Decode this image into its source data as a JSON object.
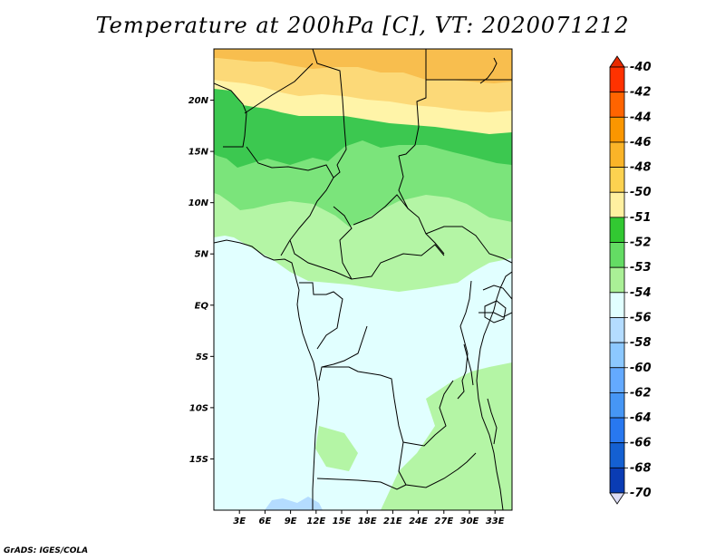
{
  "title": "Temperature at 200hPa [C], VT: 2020071212",
  "credit": "GrADS: IGES/COLA",
  "map": {
    "lat_labels": [
      "20N",
      "15N",
      "10N",
      "5N",
      "EQ",
      "5S",
      "10S",
      "15S"
    ],
    "lon_labels": [
      "3E",
      "6E",
      "9E",
      "12E",
      "15E",
      "18E",
      "21E",
      "24E",
      "27E",
      "30E",
      "33E"
    ],
    "extent": {
      "lon_min": 0,
      "lon_max": 35,
      "lat_min": -20,
      "lat_max": 25
    },
    "zone_colors": {
      "orange": "#f8be4e",
      "light_orange": "#fcd978",
      "pale_yellow": "#fff4a8",
      "green": "#3cc850",
      "mid_green": "#7be47b",
      "light_green": "#b4f5a5",
      "pale_cyan": "#e1ffff",
      "light_blue": "#b4dcff"
    }
  },
  "colorbar": {
    "labels": [
      "-40",
      "-42",
      "-44",
      "-46",
      "-48",
      "-50",
      "-51",
      "-52",
      "-53",
      "-54",
      "-56",
      "-58",
      "-60",
      "-62",
      "-64",
      "-66",
      "-68",
      "-70"
    ],
    "top_color": "#e82a00",
    "bottom_color": "#dcdcf5",
    "colors": [
      "#ff3200",
      "#ff6400",
      "#fa9600",
      "#fab428",
      "#fcd250",
      "#fff0a0",
      "#32c832",
      "#64dc64",
      "#aaf096",
      "#e1ffff",
      "#b4dcff",
      "#8cc8ff",
      "#64aaff",
      "#4696f5",
      "#2878f0",
      "#1460d2",
      "#0a3cb4",
      "#000a78"
    ]
  }
}
